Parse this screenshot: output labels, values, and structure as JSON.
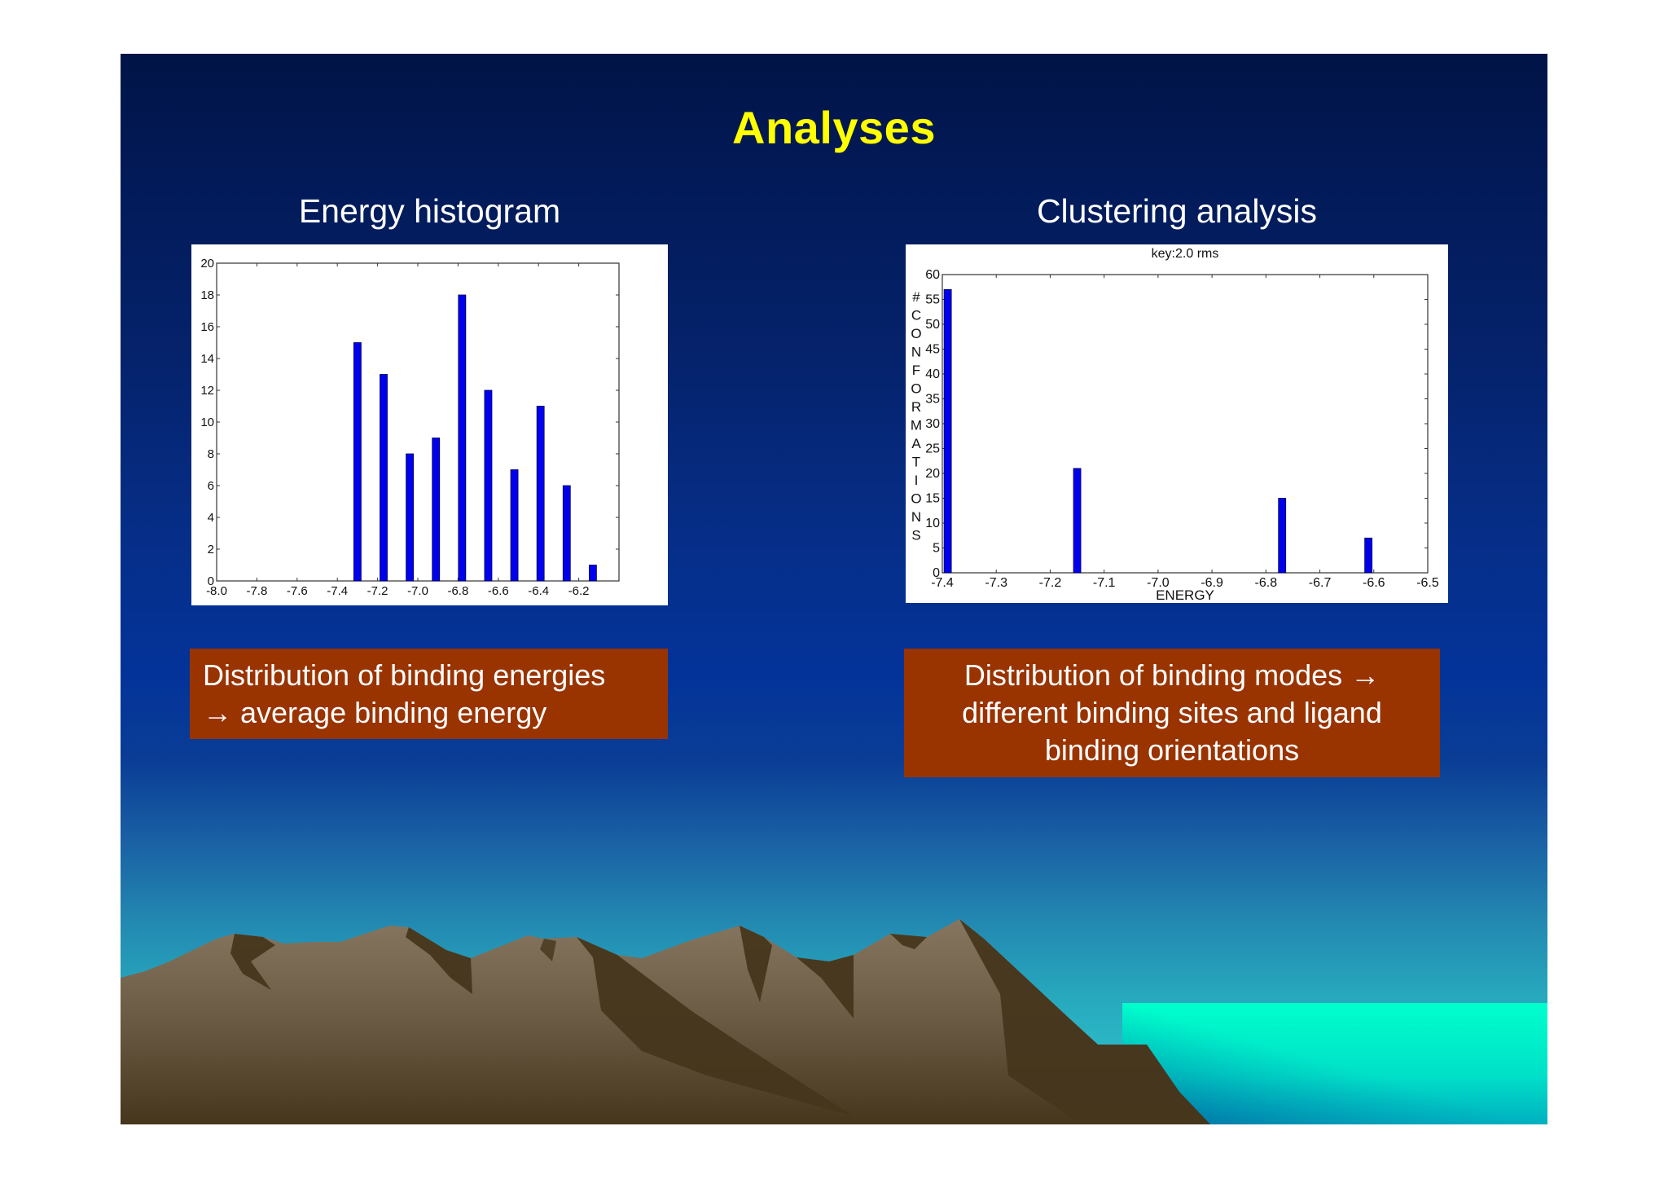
{
  "slide": {
    "title": "Analyses",
    "title_color": "#ffff00",
    "left_panel": {
      "heading": "Energy histogram",
      "caption_lines": [
        "Distribution of binding energies",
        "→ average binding energy"
      ]
    },
    "right_panel": {
      "heading": "Clustering analysis",
      "caption_lines": [
        "Distribution of binding modes →",
        "different binding sites and ligand",
        "binding orientations"
      ]
    },
    "caption_color": "#993300",
    "bar_color": "#0000ee"
  },
  "chart_data": [
    {
      "type": "bar",
      "title": "Energy histogram",
      "xlabel": "",
      "ylabel": "",
      "xlim": [
        -8.0,
        -6.0
      ],
      "ylim": [
        0,
        20
      ],
      "x_ticks": [
        "-8.0",
        "-7.8",
        "-7.6",
        "-7.4",
        "-7.2",
        "-7.0",
        "-6.8",
        "-6.6",
        "-6.4",
        "-6.2"
      ],
      "y_ticks": [
        "0",
        "2",
        "4",
        "6",
        "8",
        "10",
        "12",
        "14",
        "16",
        "18",
        "20"
      ],
      "x": [
        -7.3,
        -7.17,
        -7.04,
        -6.91,
        -6.78,
        -6.65,
        -6.52,
        -6.39,
        -6.26,
        -6.13
      ],
      "values": [
        15,
        13,
        8,
        9,
        18,
        12,
        7,
        11,
        6,
        1
      ],
      "grid": false,
      "legend": null
    },
    {
      "type": "bar",
      "title": "key:2.0 rms",
      "xlabel": "ENERGY",
      "ylabel": "# CONFORMATIONS",
      "ylabel_letters": [
        "#",
        "C",
        "O",
        "N",
        "F",
        "O",
        "R",
        "M",
        "A",
        "T",
        "I",
        "O",
        "N",
        "S"
      ],
      "xlim": [
        -7.4,
        -6.5
      ],
      "ylim": [
        0,
        60
      ],
      "x_ticks": [
        "-7.4",
        "-7.3",
        "-7.2",
        "-7.1",
        "-7.0",
        "-6.9",
        "-6.8",
        "-6.7",
        "-6.6",
        "-6.5"
      ],
      "y_ticks": [
        "0",
        "5",
        "10",
        "15",
        "20",
        "25",
        "30",
        "35",
        "40",
        "45",
        "50",
        "55",
        "60"
      ],
      "x": [
        -7.39,
        -7.15,
        -6.77,
        -6.61
      ],
      "values": [
        57,
        21,
        15,
        7
      ],
      "grid": false,
      "legend": null
    }
  ]
}
